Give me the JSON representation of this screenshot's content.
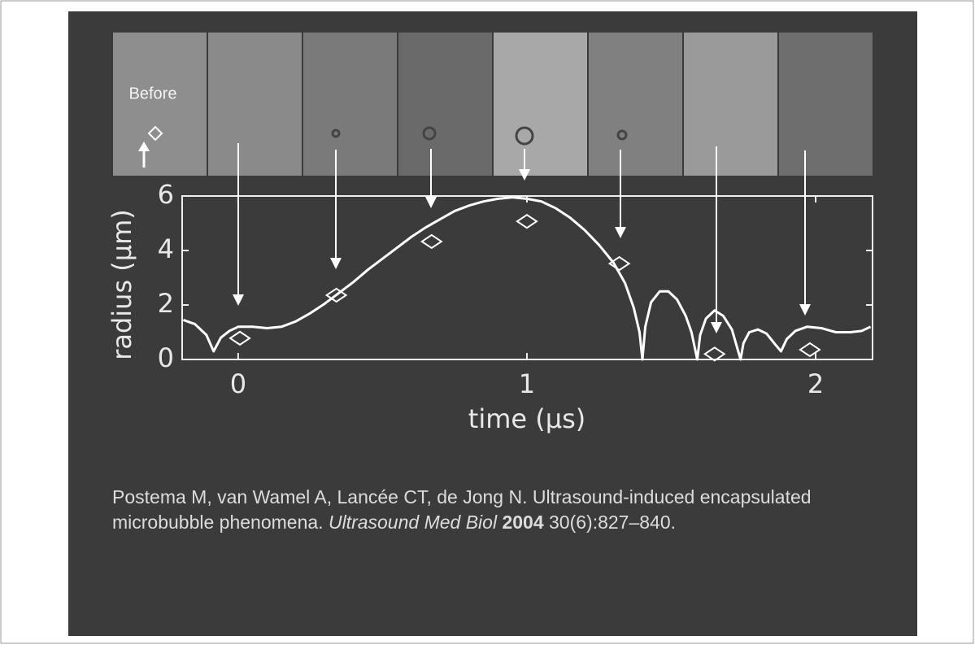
{
  "chart_data": {
    "type": "line",
    "frame_label": "Before",
    "xlabel": "time  (µs)",
    "ylabel": "radius  (µm)",
    "xlim": [
      -0.194,
      2.197
    ],
    "ylim": [
      0,
      6
    ],
    "xticks": [
      0,
      1,
      2
    ],
    "yticks": [
      0,
      2,
      4,
      6
    ],
    "series": [
      {
        "type": "line",
        "color": "#ffffff",
        "x": [
          -0.19,
          -0.15,
          -0.11,
          -0.085,
          -0.06,
          -0.03,
          0.0,
          0.05,
          0.1,
          0.15,
          0.2,
          0.25,
          0.3,
          0.35,
          0.4,
          0.45,
          0.5,
          0.55,
          0.6,
          0.65,
          0.7,
          0.75,
          0.8,
          0.85,
          0.9,
          0.95,
          1.0,
          1.05,
          1.1,
          1.15,
          1.2,
          1.25,
          1.3,
          1.34,
          1.37,
          1.39,
          1.4,
          1.41,
          1.43,
          1.46,
          1.49,
          1.52,
          1.55,
          1.57,
          1.59,
          1.6,
          1.62,
          1.65,
          1.68,
          1.71,
          1.74,
          1.75,
          1.77,
          1.8,
          1.83,
          1.86,
          1.88,
          1.9,
          1.93,
          1.97,
          2.02,
          2.07,
          2.12,
          2.16,
          2.19
        ],
        "values": [
          1.45,
          1.3,
          0.9,
          0.3,
          0.8,
          1.05,
          1.2,
          1.2,
          1.15,
          1.2,
          1.4,
          1.7,
          2.05,
          2.45,
          2.85,
          3.3,
          3.7,
          4.1,
          4.5,
          4.85,
          5.15,
          5.45,
          5.65,
          5.8,
          5.9,
          5.95,
          5.9,
          5.8,
          5.55,
          5.2,
          4.75,
          4.2,
          3.55,
          2.8,
          1.9,
          1.0,
          0,
          1.2,
          2.1,
          2.5,
          2.5,
          2.2,
          1.6,
          1.0,
          0,
          0.9,
          1.5,
          1.8,
          1.6,
          1.1,
          0,
          0.6,
          1.0,
          1.1,
          0.95,
          0.55,
          0.3,
          0.75,
          1.05,
          1.2,
          1.15,
          1.0,
          1.0,
          1.05,
          1.2
        ]
      },
      {
        "type": "scatter",
        "marker": "diamond",
        "color": "#ffffff",
        "x": [
          0.006,
          0.34,
          0.67,
          1.0,
          1.32,
          1.65,
          1.98
        ],
        "values": [
          0.78,
          2.36,
          4.33,
          5.07,
          3.52,
          0.2,
          0.36
        ]
      }
    ]
  },
  "citation": {
    "text": "Postema M, van Wamel A, Lancée CT, de Jong N. Ultrasound-induced encapsulated microbubble phenomena.",
    "journal": "Ultrasound Med Biol",
    "year": "2004",
    "pages": "30(6):827–840."
  }
}
